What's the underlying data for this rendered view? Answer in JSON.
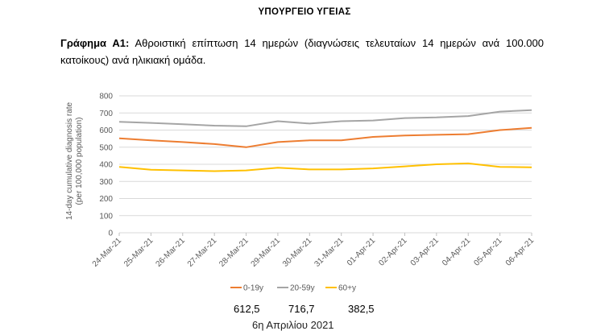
{
  "header": "ΥΠΟΥΡΓΕΙΟ ΥΓΕΙΑΣ",
  "caption": {
    "label": "Γράφημα Α1:",
    "text": "Αθροιστική επίπτωση 14 ημερών (διαγνώσεις τελευταίων 14 ημερών ανά 100.000 κατοίκους) ανά ηλικιακή ομάδα."
  },
  "chart_data": {
    "type": "line",
    "ylabel_line1": "14-day cumulative diagnosis rate",
    "ylabel_line2": "(per 100,000 population)",
    "ylim": [
      0,
      800
    ],
    "yticks": [
      0,
      100,
      200,
      300,
      400,
      500,
      600,
      700,
      800
    ],
    "grid": true,
    "legend_position": "bottom",
    "categories": [
      "24-Mar-21",
      "25-Mar-21",
      "26-Mar-21",
      "27-Mar-21",
      "28-Mar-21",
      "29-Mar-21",
      "30-Mar-21",
      "31-Mar-21",
      "01-Apr-21",
      "02-Apr-21",
      "03-Apr-21",
      "04-Apr-21",
      "05-Apr-21",
      "06-Apr-21"
    ],
    "series": [
      {
        "name": "0-19y",
        "color": "#ED7D31",
        "values": [
          552,
          540,
          530,
          518,
          500,
          530,
          540,
          540,
          560,
          568,
          572,
          576,
          600,
          612.5
        ]
      },
      {
        "name": "20-59y",
        "color": "#A5A5A5",
        "values": [
          648,
          642,
          634,
          626,
          622,
          652,
          638,
          652,
          656,
          670,
          674,
          682,
          708,
          716.7
        ]
      },
      {
        "name": "60+y",
        "color": "#FFC000",
        "values": [
          385,
          368,
          364,
          360,
          364,
          380,
          370,
          370,
          376,
          388,
          400,
          405,
          385,
          382.5
        ]
      }
    ]
  },
  "totals": [
    "612,5",
    "716,7",
    "382,5"
  ],
  "footer_text": "6η Απριλίου 2021"
}
